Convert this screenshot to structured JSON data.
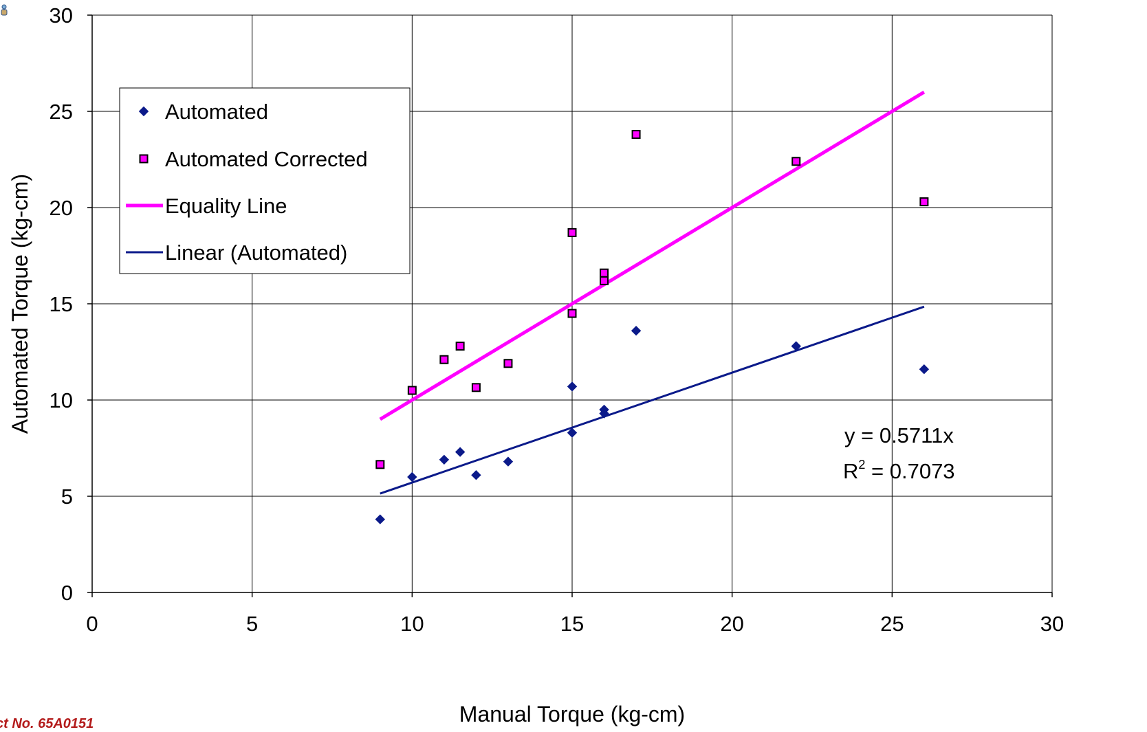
{
  "chart_data": {
    "type": "scatter",
    "title": "",
    "xlabel": "Manual Torque (kg-cm)",
    "ylabel": "Automated Torque (kg-cm)",
    "xlim": [
      0,
      30
    ],
    "ylim": [
      0,
      30
    ],
    "xticks": [
      0,
      5,
      10,
      15,
      20,
      25,
      30
    ],
    "yticks": [
      0,
      5,
      10,
      15,
      20,
      25,
      30
    ],
    "grid": true,
    "legend_position": "upper-left",
    "series": [
      {
        "name": "Automated",
        "marker": "diamond",
        "color": "#0b1a8a",
        "points": [
          {
            "x": 9,
            "y": 3.8
          },
          {
            "x": 10,
            "y": 6.0
          },
          {
            "x": 11,
            "y": 6.9
          },
          {
            "x": 11.5,
            "y": 7.3
          },
          {
            "x": 12,
            "y": 6.1
          },
          {
            "x": 13,
            "y": 6.8
          },
          {
            "x": 15,
            "y": 10.7
          },
          {
            "x": 15,
            "y": 8.3
          },
          {
            "x": 16,
            "y": 9.5
          },
          {
            "x": 16,
            "y": 9.3
          },
          {
            "x": 17,
            "y": 13.6
          },
          {
            "x": 22,
            "y": 12.8
          },
          {
            "x": 26,
            "y": 11.6
          }
        ]
      },
      {
        "name": "Automated Corrected",
        "marker": "square",
        "color": "#ff00ff",
        "points": [
          {
            "x": 9,
            "y": 6.65
          },
          {
            "x": 10,
            "y": 10.5
          },
          {
            "x": 11,
            "y": 12.1
          },
          {
            "x": 11.5,
            "y": 12.8
          },
          {
            "x": 12,
            "y": 10.65
          },
          {
            "x": 13,
            "y": 11.9
          },
          {
            "x": 15,
            "y": 18.7
          },
          {
            "x": 15,
            "y": 14.5
          },
          {
            "x": 16,
            "y": 16.6
          },
          {
            "x": 16,
            "y": 16.2
          },
          {
            "x": 17,
            "y": 23.8
          },
          {
            "x": 22,
            "y": 22.4
          },
          {
            "x": 26,
            "y": 20.3
          }
        ]
      },
      {
        "name": "Equality Line",
        "type": "line",
        "color": "#ff00ff",
        "points": [
          {
            "x": 9,
            "y": 9
          },
          {
            "x": 26,
            "y": 26
          }
        ]
      },
      {
        "name": "Linear (Automated)",
        "type": "line",
        "color": "#0b1a8a",
        "slope": 0.5711,
        "points": [
          {
            "x": 9,
            "y": 5.14
          },
          {
            "x": 26,
            "y": 14.85
          }
        ]
      }
    ],
    "annotation": {
      "equation": "y = 0.5711x",
      "r_squared_prefix": "R",
      "r_squared_sup": "2",
      "r_squared_value": " = 0.7073"
    }
  },
  "footer_text": "ct No. 65A0151",
  "colors": {
    "axis": "#000000",
    "grid": "#000000",
    "footer": "#b31b1b"
  },
  "icons": {
    "corner": "small-person-icon"
  }
}
